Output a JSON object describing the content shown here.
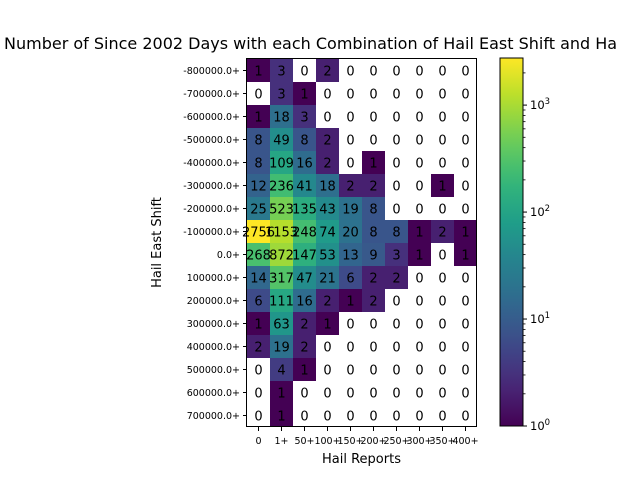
{
  "chart_data": {
    "type": "heatmap",
    "title": "Number of Since 2002 Days with each Combination of Hail East Shift and Ha",
    "xlabel": "Hail Reports",
    "ylabel": "Hail East Shift",
    "x_categories": [
      "0",
      "1+",
      "50+",
      "100+",
      "150+",
      "200+",
      "250+",
      "300+",
      "350+",
      "400+"
    ],
    "y_categories": [
      "-800000.0+",
      "-700000.0+",
      "-600000.0+",
      "-500000.0+",
      "-400000.0+",
      "-300000.0+",
      "-200000.0+",
      "-100000.0+",
      "0.0+",
      "100000.0+",
      "200000.0+",
      "300000.0+",
      "400000.0+",
      "500000.0+",
      "600000.0+",
      "700000.0+"
    ],
    "values": [
      [
        1,
        3,
        0,
        2,
        0,
        0,
        0,
        0,
        0,
        0
      ],
      [
        0,
        3,
        1,
        0,
        0,
        0,
        0,
        0,
        0,
        0
      ],
      [
        1,
        18,
        3,
        0,
        0,
        0,
        0,
        0,
        0,
        0
      ],
      [
        8,
        49,
        8,
        2,
        0,
        0,
        0,
        0,
        0,
        0
      ],
      [
        8,
        109,
        16,
        2,
        0,
        1,
        0,
        0,
        0,
        0
      ],
      [
        12,
        236,
        41,
        18,
        2,
        2,
        0,
        0,
        1,
        0
      ],
      [
        25,
        523,
        135,
        43,
        19,
        8,
        0,
        0,
        0,
        0
      ],
      [
        2756,
        1153,
        248,
        74,
        20,
        8,
        8,
        1,
        2,
        1
      ],
      [
        268,
        872,
        147,
        53,
        13,
        9,
        3,
        1,
        0,
        1
      ],
      [
        14,
        317,
        47,
        21,
        6,
        2,
        2,
        0,
        0,
        0
      ],
      [
        6,
        111,
        16,
        2,
        1,
        2,
        0,
        0,
        0,
        0
      ],
      [
        1,
        63,
        2,
        1,
        0,
        0,
        0,
        0,
        0,
        0
      ],
      [
        2,
        19,
        2,
        0,
        0,
        0,
        0,
        0,
        0,
        0
      ],
      [
        0,
        4,
        1,
        0,
        0,
        0,
        0,
        0,
        0,
        0
      ],
      [
        0,
        1,
        0,
        0,
        0,
        0,
        0,
        0,
        0,
        0
      ],
      [
        0,
        1,
        0,
        0,
        0,
        0,
        0,
        0,
        0,
        0
      ]
    ],
    "color_scale": "log",
    "colormap": "viridis",
    "zero_color": "#ffffff",
    "colorbar_range": [
      1,
      2756
    ],
    "colorbar_ticks": [
      {
        "value": 1,
        "base": "10",
        "exp": "0"
      },
      {
        "value": 10,
        "base": "10",
        "exp": "1"
      },
      {
        "value": 100,
        "base": "10",
        "exp": "2"
      },
      {
        "value": 1000,
        "base": "10",
        "exp": "3"
      }
    ],
    "grid": false
  }
}
